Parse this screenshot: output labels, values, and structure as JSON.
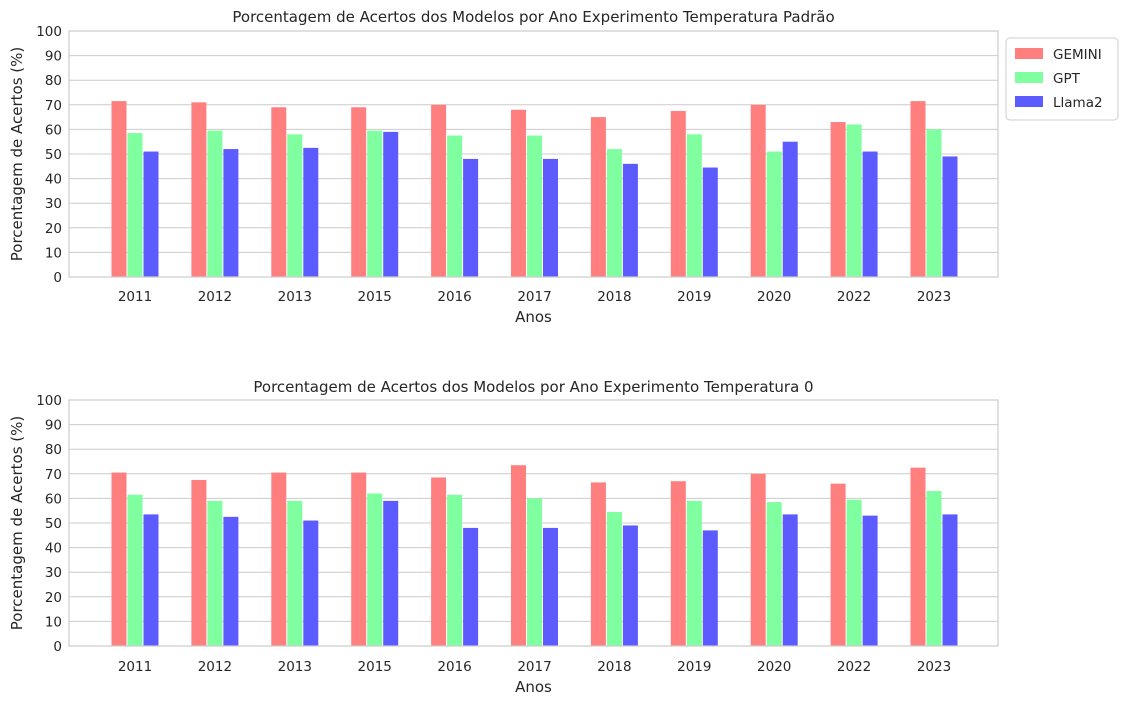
{
  "chart_data": [
    {
      "type": "bar",
      "title": "Porcentagem de Acertos dos Modelos por Ano Experimento Temperatura Padrão",
      "xlabel": "Anos",
      "ylabel": "Porcentagem de Acertos (%)",
      "ylim": [
        0,
        100
      ],
      "yticks": [
        "0",
        "10",
        "20",
        "30",
        "40",
        "50",
        "60",
        "70",
        "80",
        "90",
        "100"
      ],
      "grid": true,
      "legend": "outside-top-right",
      "categories": [
        "2011",
        "2012",
        "2013",
        "2015",
        "2016",
        "2017",
        "2018",
        "2019",
        "2020",
        "2022",
        "2023"
      ],
      "series": [
        {
          "name": "GEMINI",
          "color": "#ff7f7f",
          "values": [
            71.5,
            71,
            69,
            69,
            70,
            68,
            65,
            67.5,
            70,
            63,
            71.5
          ]
        },
        {
          "name": "GPT",
          "color": "#7fff9f",
          "values": [
            58.5,
            59.5,
            58,
            59.5,
            57.5,
            57.5,
            52,
            58,
            51,
            62,
            60
          ]
        },
        {
          "name": "Llama2",
          "color": "#5b5bff",
          "values": [
            51,
            52,
            52.5,
            59,
            48,
            48,
            46,
            44.5,
            55,
            51,
            49
          ]
        }
      ]
    },
    {
      "type": "bar",
      "title": "Porcentagem de Acertos dos Modelos por Ano Experimento Temperatura 0",
      "xlabel": "Anos",
      "ylabel": "Porcentagem de Acertos (%)",
      "ylim": [
        0,
        100
      ],
      "yticks": [
        "0",
        "10",
        "20",
        "30",
        "40",
        "50",
        "60",
        "70",
        "80",
        "90",
        "100"
      ],
      "grid": true,
      "categories": [
        "2011",
        "2012",
        "2013",
        "2015",
        "2016",
        "2017",
        "2018",
        "2019",
        "2020",
        "2022",
        "2023"
      ],
      "series": [
        {
          "name": "GEMINI",
          "color": "#ff7f7f",
          "values": [
            70.5,
            67.5,
            70.5,
            70.5,
            68.5,
            73.5,
            66.5,
            67,
            70,
            66,
            72.5
          ]
        },
        {
          "name": "GPT",
          "color": "#7fff9f",
          "values": [
            61.5,
            59,
            59,
            62,
            61.5,
            60,
            54.5,
            59,
            58.5,
            59.5,
            63
          ]
        },
        {
          "name": "Llama2",
          "color": "#5b5bff",
          "values": [
            53.5,
            52.5,
            51,
            59,
            48,
            48,
            49,
            47,
            53.5,
            53,
            53.5
          ]
        }
      ]
    }
  ]
}
